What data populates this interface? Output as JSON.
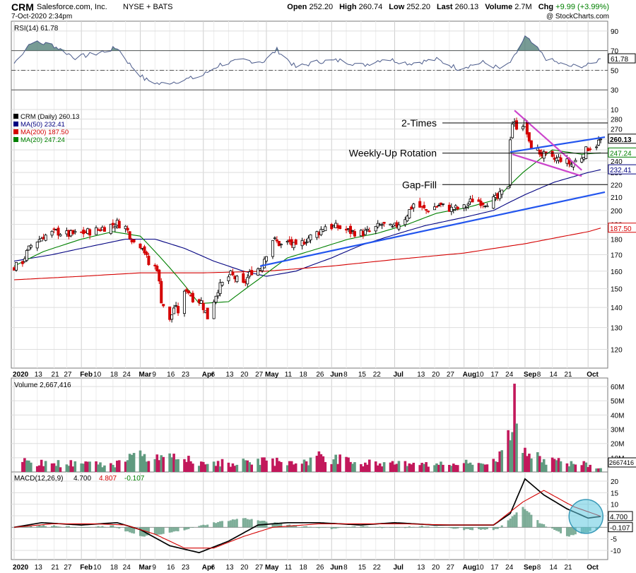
{
  "header": {
    "symbol": "CRM",
    "company": "Salesforce.com, Inc.",
    "exchange": "NYSE + BATS",
    "timestamp": "7-Oct-2020 2:34pm",
    "watermark": "@ StockCharts.com",
    "quote": [
      {
        "label": "Open",
        "value": "252.20"
      },
      {
        "label": "High",
        "value": "260.74"
      },
      {
        "label": "Low",
        "value": "252.20"
      },
      {
        "label": "Last",
        "value": "260.13"
      },
      {
        "label": "Volume",
        "value": "2.7M"
      },
      {
        "label": "Chg",
        "value": "+9.99 (+3.99%)",
        "color": "#008000"
      }
    ]
  },
  "chart_data": [
    {
      "type": "line",
      "panel": "rsi",
      "legend": "RSI(14) 61.78",
      "ylim": [
        10,
        100
      ],
      "y_ticks": [
        10,
        30,
        50,
        70,
        90
      ],
      "current_label": "61.78",
      "reference_lines": [
        70,
        50,
        30
      ],
      "series": [
        {
          "name": "RSI(14)",
          "color": "#000000",
          "fill": "#4a7a72",
          "x": [
            "2020-01-02",
            "2020-01-10",
            "2020-01-20",
            "2020-01-31",
            "2020-02-10",
            "2020-02-20",
            "2020-02-26",
            "2020-03-04",
            "2020-03-11",
            "2020-03-20",
            "2020-03-31",
            "2020-04-09",
            "2020-04-20",
            "2020-04-30",
            "2020-05-06",
            "2020-05-15",
            "2020-05-26",
            "2020-06-05",
            "2020-06-16",
            "2020-06-26",
            "2020-07-08",
            "2020-07-21",
            "2020-07-31",
            "2020-08-12",
            "2020-08-21",
            "2020-08-26",
            "2020-09-01",
            "2020-09-04",
            "2020-09-11",
            "2020-09-21",
            "2020-10-01",
            "2020-10-07"
          ],
          "values": [
            57,
            79,
            76,
            63,
            67,
            73,
            56,
            41,
            36,
            39,
            44,
            56,
            60,
            59,
            71,
            53,
            59,
            60,
            55,
            62,
            57,
            61,
            52,
            58,
            51,
            60,
            84,
            78,
            62,
            54,
            55,
            61.78
          ]
        }
      ]
    },
    {
      "type": "line",
      "panel": "price",
      "legend": [
        {
          "text": "CRM (Daily) 260.13",
          "color": "#000000"
        },
        {
          "text": "MA(50) 232.41",
          "color": "#000080"
        },
        {
          "text": "MA(200) 187.50",
          "color": "#d40000"
        },
        {
          "text": "MA(20) 247.24",
          "color": "#008000"
        }
      ],
      "y_scale": "log",
      "ylim": [
        112,
        290
      ],
      "y_ticks": [
        120,
        130,
        140,
        150,
        160,
        170,
        180,
        190,
        200,
        210,
        220,
        230,
        240,
        250,
        260,
        270,
        280
      ],
      "badges": [
        {
          "value": "260.13",
          "text": "260.13",
          "bg": "#ffffff",
          "color": "#000000",
          "bold": true
        },
        {
          "value": "247.24",
          "text": "247.24",
          "bg": "#ffffff",
          "color": "#008000"
        },
        {
          "value": "232.41",
          "text": "232.41",
          "bg": "#ffffff",
          "color": "#000080"
        },
        {
          "value": "187.50",
          "text": "187.50",
          "bg": "#ffffff",
          "color": "#d40000"
        }
      ],
      "annotations": [
        {
          "text": "2-Times",
          "y": 276
        },
        {
          "text": "Weekly-Up Rotation",
          "y": 247
        },
        {
          "text": "Gap-Fill",
          "y": 220
        }
      ],
      "trendlines": [
        {
          "color": "#2255ee",
          "points": [
            [
              "2020-04-28",
              163
            ],
            [
              "2020-10-09",
              214
            ]
          ]
        },
        {
          "color": "#2255ee",
          "points": [
            [
              "2020-08-25",
              248
            ],
            [
              "2020-10-09",
              262
            ]
          ]
        },
        {
          "color": "#cc44cc",
          "points": [
            [
              "2020-08-27",
              289
            ],
            [
              "2020-09-28",
              232
            ]
          ]
        },
        {
          "color": "#cc44cc",
          "points": [
            [
              "2020-08-26",
              246
            ],
            [
              "2020-09-28",
              227
            ]
          ]
        }
      ],
      "series": [
        {
          "name": "CRM",
          "kind": "price",
          "color": "#000000",
          "x": [
            "2020-01-02",
            "2020-01-06",
            "2020-01-10",
            "2020-01-16",
            "2020-01-22",
            "2020-01-28",
            "2020-02-03",
            "2020-02-10",
            "2020-02-14",
            "2020-02-20",
            "2020-02-24",
            "2020-02-28",
            "2020-03-03",
            "2020-03-06",
            "2020-03-10",
            "2020-03-12",
            "2020-03-16",
            "2020-03-18",
            "2020-03-20",
            "2020-03-24",
            "2020-03-27",
            "2020-03-31",
            "2020-04-03",
            "2020-04-08",
            "2020-04-14",
            "2020-04-20",
            "2020-04-24",
            "2020-04-28",
            "2020-05-04",
            "2020-05-08",
            "2020-05-12",
            "2020-05-15",
            "2020-05-20",
            "2020-05-26",
            "2020-05-29",
            "2020-06-04",
            "2020-06-10",
            "2020-06-15",
            "2020-06-19",
            "2020-06-25",
            "2020-06-30",
            "2020-07-06",
            "2020-07-10",
            "2020-07-16",
            "2020-07-22",
            "2020-07-28",
            "2020-08-03",
            "2020-08-07",
            "2020-08-13",
            "2020-08-19",
            "2020-08-24",
            "2020-08-25",
            "2020-08-26",
            "2020-08-28",
            "2020-09-01",
            "2020-09-03",
            "2020-09-09",
            "2020-09-14",
            "2020-09-18",
            "2020-09-23",
            "2020-09-28",
            "2020-10-01",
            "2020-10-05",
            "2020-10-07"
          ],
          "values": [
            162,
            166,
            176,
            182,
            185,
            183,
            184,
            186,
            188,
            191,
            188,
            178,
            176,
            164,
            162,
            144,
            133,
            140,
            138,
            150,
            145,
            143,
            135,
            150,
            158,
            152,
            160,
            162,
            180,
            176,
            178,
            174,
            180,
            185,
            189,
            188,
            185,
            184,
            185,
            190,
            187,
            195,
            205,
            200,
            204,
            201,
            202,
            208,
            206,
            209,
            220,
            262,
            276,
            273,
            276,
            255,
            246,
            241,
            242,
            237,
            244,
            252,
            255,
            260.13
          ]
        },
        {
          "name": "MA(50)",
          "color": "#000080",
          "x": [
            "2020-01-02",
            "2020-01-20",
            "2020-02-10",
            "2020-02-24",
            "2020-03-09",
            "2020-03-23",
            "2020-04-06",
            "2020-04-20",
            "2020-05-01",
            "2020-05-15",
            "2020-06-01",
            "2020-06-15",
            "2020-07-01",
            "2020-07-15",
            "2020-08-03",
            "2020-08-17",
            "2020-09-01",
            "2020-09-15",
            "2020-10-01",
            "2020-10-07"
          ],
          "values": [
            166,
            170,
            176,
            180,
            180,
            174,
            166,
            160,
            157,
            160,
            168,
            176,
            183,
            189,
            195,
            200,
            212,
            222,
            230,
            232.41
          ]
        },
        {
          "name": "MA(200)",
          "color": "#d40000",
          "x": [
            "2020-01-02",
            "2020-02-03",
            "2020-03-02",
            "2020-04-01",
            "2020-05-01",
            "2020-06-01",
            "2020-07-01",
            "2020-08-03",
            "2020-09-01",
            "2020-10-01",
            "2020-10-07"
          ],
          "values": [
            155,
            157,
            159,
            159,
            160,
            163,
            167,
            171,
            177,
            185,
            187.5
          ]
        },
        {
          "name": "MA(20)",
          "color": "#008000",
          "x": [
            "2020-01-02",
            "2020-01-16",
            "2020-02-03",
            "2020-02-18",
            "2020-03-02",
            "2020-03-16",
            "2020-03-30",
            "2020-04-13",
            "2020-04-27",
            "2020-05-11",
            "2020-05-26",
            "2020-06-09",
            "2020-06-23",
            "2020-07-07",
            "2020-07-21",
            "2020-08-04",
            "2020-08-18",
            "2020-08-31",
            "2020-09-14",
            "2020-09-28",
            "2020-10-07"
          ],
          "values": [
            163,
            172,
            180,
            185,
            182,
            162,
            142,
            143,
            155,
            168,
            174,
            180,
            184,
            190,
            198,
            202,
            208,
            230,
            250,
            246,
            247.24
          ]
        }
      ]
    },
    {
      "type": "bar",
      "panel": "volume",
      "legend": "Volume 2,667,416",
      "ylim": [
        0,
        66
      ],
      "y_ticks": [
        "10M",
        "20M",
        "30M",
        "40M",
        "50M",
        "60M"
      ],
      "y_tick_values": [
        10,
        20,
        30,
        40,
        50,
        60
      ],
      "current_label": "2667416",
      "series": [
        {
          "name": "Volume",
          "unit": "M",
          "x": [
            "2020-01-06",
            "2020-01-20",
            "2020-02-03",
            "2020-02-18",
            "2020-02-27",
            "2020-03-09",
            "2020-03-16",
            "2020-03-23",
            "2020-04-01",
            "2020-04-15",
            "2020-05-01",
            "2020-05-15",
            "2020-05-28",
            "2020-06-10",
            "2020-06-24",
            "2020-07-08",
            "2020-07-22",
            "2020-08-05",
            "2020-08-19",
            "2020-08-26",
            "2020-08-27",
            "2020-08-28",
            "2020-09-01",
            "2020-09-10",
            "2020-09-21",
            "2020-10-02",
            "2020-10-07"
          ],
          "values": [
            7,
            6,
            6,
            5,
            12,
            9,
            13,
            9,
            7,
            6,
            8,
            6,
            11,
            7,
            6,
            6,
            5,
            6,
            7,
            28,
            62,
            34,
            17,
            9,
            6,
            5,
            2.67
          ]
        }
      ]
    },
    {
      "type": "line",
      "panel": "macd",
      "legend": [
        {
          "text": "MACD(12,26,9)",
          "color": "#000000"
        },
        {
          "text": "4.700",
          "color": "#000000"
        },
        {
          "text": "4.807",
          "color": "#d40000"
        },
        {
          "text": "-0.107",
          "color": "#008000"
        }
      ],
      "ylim": [
        -14,
        24
      ],
      "y_ticks": [
        -10,
        -5,
        0,
        5,
        10,
        15,
        20
      ],
      "badges": [
        {
          "value": "4.700",
          "text": "4.700"
        },
        {
          "value": "-0.107",
          "text": "-0.107"
        }
      ],
      "series": [
        {
          "name": "MACD",
          "color": "#000000",
          "x": [
            "2020-01-02",
            "2020-01-15",
            "2020-02-03",
            "2020-02-20",
            "2020-03-02",
            "2020-03-16",
            "2020-03-30",
            "2020-04-13",
            "2020-04-27",
            "2020-05-11",
            "2020-05-26",
            "2020-06-15",
            "2020-07-01",
            "2020-07-20",
            "2020-08-03",
            "2020-08-17",
            "2020-08-25",
            "2020-09-01",
            "2020-09-10",
            "2020-09-21",
            "2020-10-01",
            "2020-10-07"
          ],
          "values": [
            0,
            2,
            1,
            2,
            -1,
            -8,
            -11,
            -6,
            1,
            2,
            2,
            1,
            2,
            1,
            1,
            1,
            6,
            21,
            14,
            8,
            4,
            4.7
          ]
        },
        {
          "name": "Signal",
          "color": "#d40000",
          "x": [
            "2020-01-02",
            "2020-01-20",
            "2020-02-10",
            "2020-02-24",
            "2020-03-09",
            "2020-03-23",
            "2020-04-06",
            "2020-04-20",
            "2020-05-04",
            "2020-05-26",
            "2020-06-15",
            "2020-07-06",
            "2020-07-27",
            "2020-08-17",
            "2020-08-31",
            "2020-09-10",
            "2020-09-24",
            "2020-10-07"
          ],
          "values": [
            0,
            1.5,
            1.5,
            1,
            -3,
            -9,
            -9,
            -4,
            0,
            1.5,
            1.5,
            1.5,
            1,
            1,
            11,
            16,
            9,
            4.807
          ]
        },
        {
          "name": "Histogram",
          "kind": "histogram",
          "color": "#5f9a7f",
          "x": [
            "2020-01-06",
            "2020-01-20",
            "2020-02-03",
            "2020-02-18",
            "2020-03-02",
            "2020-03-13",
            "2020-03-23",
            "2020-04-06",
            "2020-04-20",
            "2020-05-04",
            "2020-05-18",
            "2020-06-01",
            "2020-06-15",
            "2020-07-01",
            "2020-07-15",
            "2020-08-03",
            "2020-08-19",
            "2020-08-31",
            "2020-09-08",
            "2020-09-21",
            "2020-10-01",
            "2020-10-07"
          ],
          "values": [
            0.5,
            0.8,
            -0.2,
            0.6,
            -4,
            -3,
            -1,
            2,
            4,
            2,
            0.5,
            -0.5,
            0.4,
            -0.3,
            0.5,
            -1,
            -1,
            9,
            2,
            -4,
            -2,
            -0.107
          ]
        }
      ]
    }
  ],
  "x_axis": {
    "labels": [
      {
        "text": "2020",
        "date": "2020-01-02",
        "bold": true
      },
      {
        "text": "13",
        "date": "2020-01-13"
      },
      {
        "text": "21",
        "date": "2020-01-21"
      },
      {
        "text": "27",
        "date": "2020-01-27"
      },
      {
        "text": "Feb",
        "date": "2020-02-03",
        "bold": true
      },
      {
        "text": "10",
        "date": "2020-02-10"
      },
      {
        "text": "18",
        "date": "2020-02-18"
      },
      {
        "text": "24",
        "date": "2020-02-24"
      },
      {
        "text": "Mar",
        "date": "2020-03-02",
        "bold": true
      },
      {
        "text": "9",
        "date": "2020-03-09"
      },
      {
        "text": "16",
        "date": "2020-03-16"
      },
      {
        "text": "23",
        "date": "2020-03-23"
      },
      {
        "text": "Apr",
        "date": "2020-04-01",
        "bold": true
      },
      {
        "text": "6",
        "date": "2020-04-06"
      },
      {
        "text": "13",
        "date": "2020-04-13"
      },
      {
        "text": "20",
        "date": "2020-04-20"
      },
      {
        "text": "27",
        "date": "2020-04-27"
      },
      {
        "text": "May",
        "date": "2020-05-01",
        "bold": true
      },
      {
        "text": "11",
        "date": "2020-05-11"
      },
      {
        "text": "18",
        "date": "2020-05-18"
      },
      {
        "text": "26",
        "date": "2020-05-26"
      },
      {
        "text": "Jun",
        "date": "2020-06-01",
        "bold": true
      },
      {
        "text": "8",
        "date": "2020-06-08"
      },
      {
        "text": "15",
        "date": "2020-06-15"
      },
      {
        "text": "22",
        "date": "2020-06-22"
      },
      {
        "text": "Jul",
        "date": "2020-07-01",
        "bold": true
      },
      {
        "text": "13",
        "date": "2020-07-13"
      },
      {
        "text": "20",
        "date": "2020-07-20"
      },
      {
        "text": "27",
        "date": "2020-07-27"
      },
      {
        "text": "Aug",
        "date": "2020-08-03",
        "bold": true
      },
      {
        "text": "10",
        "date": "2020-08-10"
      },
      {
        "text": "17",
        "date": "2020-08-17"
      },
      {
        "text": "24",
        "date": "2020-08-24"
      },
      {
        "text": "Sep",
        "date": "2020-09-01",
        "bold": true
      },
      {
        "text": "8",
        "date": "2020-09-08"
      },
      {
        "text": "14",
        "date": "2020-09-14"
      },
      {
        "text": "21",
        "date": "2020-09-21"
      },
      {
        "text": "Oct",
        "date": "2020-10-01",
        "bold": true
      }
    ]
  },
  "colors": {
    "up": "#000000",
    "down": "#d40000",
    "volume_up": "#5f9a7f",
    "volume_down": "#c2185b",
    "grid": "#dddddd",
    "panel_border": "#7a7a7a",
    "highlight_circle": "#5fc8e0"
  }
}
